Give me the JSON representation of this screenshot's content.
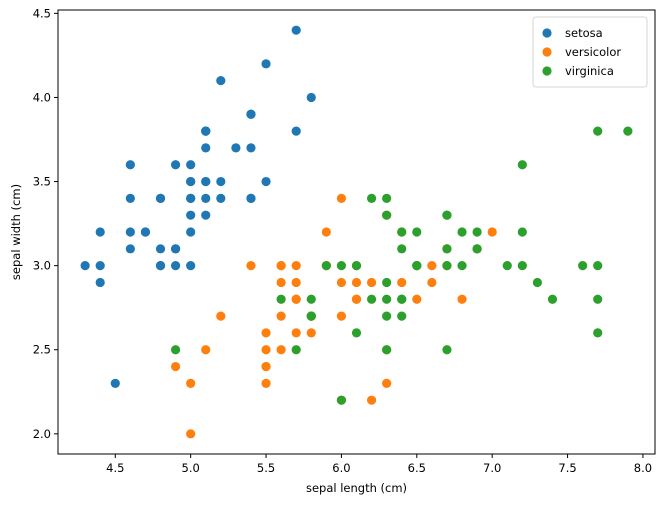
{
  "chart_data": {
    "type": "scatter",
    "title": "",
    "xlabel": "sepal length (cm)",
    "ylabel": "sepal width (cm)",
    "xlim": [
      4.12,
      8.08
    ],
    "ylim": [
      1.88,
      4.52
    ],
    "xticks": [
      "4.5",
      "5.0",
      "5.5",
      "6.0",
      "6.5",
      "7.0",
      "7.5",
      "8.0"
    ],
    "yticks": [
      "2.0",
      "2.5",
      "3.0",
      "3.5",
      "4.0",
      "4.5"
    ],
    "grid": false,
    "legend_position": "top-right",
    "series": [
      {
        "name": "setosa",
        "color": "#1f77b4",
        "points": [
          [
            5.1,
            3.5
          ],
          [
            4.9,
            3.0
          ],
          [
            4.7,
            3.2
          ],
          [
            4.6,
            3.1
          ],
          [
            5.0,
            3.6
          ],
          [
            5.4,
            3.9
          ],
          [
            4.6,
            3.4
          ],
          [
            5.0,
            3.4
          ],
          [
            4.4,
            2.9
          ],
          [
            4.9,
            3.1
          ],
          [
            5.4,
            3.7
          ],
          [
            4.8,
            3.4
          ],
          [
            4.8,
            3.0
          ],
          [
            4.3,
            3.0
          ],
          [
            5.8,
            4.0
          ],
          [
            5.7,
            4.4
          ],
          [
            5.4,
            3.9
          ],
          [
            5.1,
            3.5
          ],
          [
            5.7,
            3.8
          ],
          [
            5.1,
            3.8
          ],
          [
            5.4,
            3.4
          ],
          [
            5.1,
            3.7
          ],
          [
            4.6,
            3.6
          ],
          [
            5.1,
            3.3
          ],
          [
            4.8,
            3.4
          ],
          [
            5.0,
            3.0
          ],
          [
            5.0,
            3.4
          ],
          [
            5.2,
            3.5
          ],
          [
            5.2,
            3.4
          ],
          [
            4.7,
            3.2
          ],
          [
            4.8,
            3.1
          ],
          [
            5.4,
            3.4
          ],
          [
            5.2,
            4.1
          ],
          [
            5.5,
            4.2
          ],
          [
            4.9,
            3.1
          ],
          [
            5.0,
            3.2
          ],
          [
            5.5,
            3.5
          ],
          [
            4.9,
            3.6
          ],
          [
            4.4,
            3.0
          ],
          [
            5.1,
            3.4
          ],
          [
            5.0,
            3.5
          ],
          [
            4.5,
            2.3
          ],
          [
            4.4,
            3.2
          ],
          [
            5.0,
            3.5
          ],
          [
            5.1,
            3.8
          ],
          [
            4.8,
            3.0
          ],
          [
            5.1,
            3.8
          ],
          [
            4.6,
            3.2
          ],
          [
            5.3,
            3.7
          ],
          [
            5.0,
            3.3
          ]
        ]
      },
      {
        "name": "versicolor",
        "color": "#ff7f0e",
        "points": [
          [
            7.0,
            3.2
          ],
          [
            6.4,
            3.2
          ],
          [
            6.9,
            3.1
          ],
          [
            5.5,
            2.3
          ],
          [
            6.5,
            2.8
          ],
          [
            5.7,
            2.8
          ],
          [
            6.3,
            3.3
          ],
          [
            4.9,
            2.4
          ],
          [
            6.6,
            2.9
          ],
          [
            5.2,
            2.7
          ],
          [
            5.0,
            2.0
          ],
          [
            5.9,
            3.0
          ],
          [
            6.0,
            2.2
          ],
          [
            6.1,
            2.9
          ],
          [
            5.6,
            2.9
          ],
          [
            6.7,
            3.1
          ],
          [
            5.6,
            3.0
          ],
          [
            5.8,
            2.7
          ],
          [
            6.2,
            2.2
          ],
          [
            5.6,
            2.5
          ],
          [
            5.9,
            3.2
          ],
          [
            6.1,
            2.8
          ],
          [
            6.3,
            2.5
          ],
          [
            6.1,
            2.8
          ],
          [
            6.4,
            2.9
          ],
          [
            6.6,
            3.0
          ],
          [
            6.8,
            2.8
          ],
          [
            6.7,
            3.0
          ],
          [
            6.0,
            2.9
          ],
          [
            5.7,
            2.6
          ],
          [
            5.5,
            2.4
          ],
          [
            5.5,
            2.4
          ],
          [
            5.8,
            2.7
          ],
          [
            6.0,
            2.7
          ],
          [
            5.4,
            3.0
          ],
          [
            6.0,
            3.4
          ],
          [
            6.7,
            3.1
          ],
          [
            6.3,
            2.3
          ],
          [
            5.6,
            3.0
          ],
          [
            5.5,
            2.5
          ],
          [
            5.5,
            2.6
          ],
          [
            6.1,
            3.0
          ],
          [
            5.8,
            2.6
          ],
          [
            5.0,
            2.3
          ],
          [
            5.6,
            2.7
          ],
          [
            5.7,
            3.0
          ],
          [
            5.7,
            2.9
          ],
          [
            6.2,
            2.9
          ],
          [
            5.1,
            2.5
          ],
          [
            5.7,
            2.8
          ]
        ]
      },
      {
        "name": "virginica",
        "color": "#2ca02c",
        "points": [
          [
            6.3,
            3.3
          ],
          [
            5.8,
            2.7
          ],
          [
            7.1,
            3.0
          ],
          [
            6.3,
            2.9
          ],
          [
            6.5,
            3.0
          ],
          [
            7.6,
            3.0
          ],
          [
            4.9,
            2.5
          ],
          [
            7.3,
            2.9
          ],
          [
            6.7,
            2.5
          ],
          [
            7.2,
            3.6
          ],
          [
            6.5,
            3.2
          ],
          [
            6.4,
            2.7
          ],
          [
            6.8,
            3.0
          ],
          [
            5.7,
            2.5
          ],
          [
            5.8,
            2.8
          ],
          [
            6.4,
            3.2
          ],
          [
            6.5,
            3.0
          ],
          [
            7.7,
            3.8
          ],
          [
            7.7,
            2.6
          ],
          [
            6.0,
            2.2
          ],
          [
            6.9,
            3.2
          ],
          [
            5.6,
            2.8
          ],
          [
            7.7,
            2.8
          ],
          [
            6.3,
            2.7
          ],
          [
            6.7,
            3.3
          ],
          [
            7.2,
            3.2
          ],
          [
            6.2,
            2.8
          ],
          [
            6.1,
            3.0
          ],
          [
            6.4,
            2.8
          ],
          [
            7.2,
            3.0
          ],
          [
            7.4,
            2.8
          ],
          [
            7.9,
            3.8
          ],
          [
            6.4,
            2.8
          ],
          [
            6.3,
            2.8
          ],
          [
            6.1,
            2.6
          ],
          [
            7.7,
            3.0
          ],
          [
            6.3,
            3.4
          ],
          [
            6.4,
            3.1
          ],
          [
            6.0,
            3.0
          ],
          [
            6.9,
            3.1
          ],
          [
            6.7,
            3.1
          ],
          [
            6.9,
            3.1
          ],
          [
            5.8,
            2.7
          ],
          [
            6.8,
            3.2
          ],
          [
            6.7,
            3.3
          ],
          [
            6.7,
            3.0
          ],
          [
            6.3,
            2.5
          ],
          [
            6.5,
            3.0
          ],
          [
            6.2,
            3.4
          ],
          [
            5.9,
            3.0
          ]
        ]
      }
    ]
  }
}
